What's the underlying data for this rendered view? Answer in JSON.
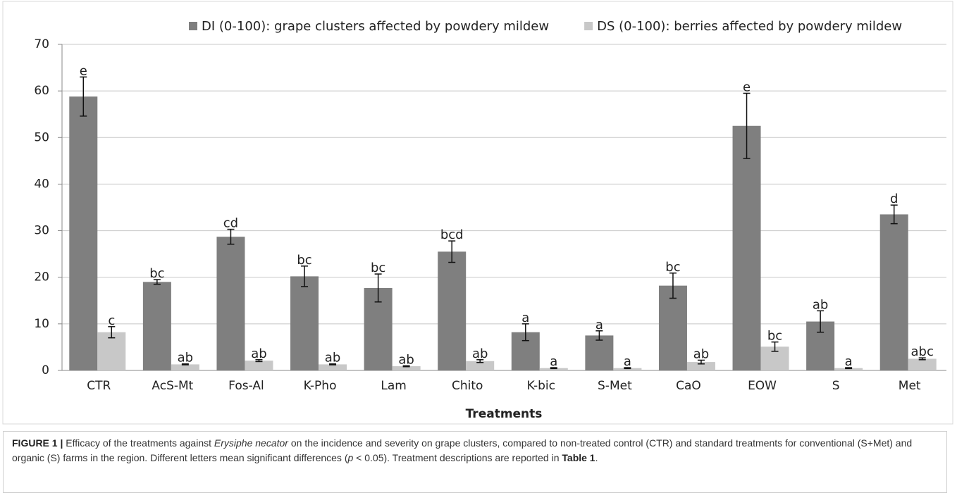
{
  "chart_data": {
    "type": "bar",
    "xlabel": "Treatments",
    "categories": [
      "CTR",
      "AcS-Mt",
      "Fos-Al",
      "K-Pho",
      "Lam",
      "Chito",
      "K-bic",
      "S-Met",
      "CaO",
      "EOW",
      "S",
      "Met"
    ],
    "series": [
      {
        "name": "DI (0-100): grape clusters affected by powdery mildew",
        "color": "#7f7f7f",
        "values": [
          58.8,
          19,
          28.7,
          20.2,
          17.7,
          25.5,
          8.2,
          7.5,
          18.2,
          52.5,
          10.5,
          33.5
        ],
        "errors": [
          4.2,
          0.5,
          1.6,
          2.2,
          3.0,
          2.3,
          1.8,
          1.0,
          2.7,
          7.0,
          2.3,
          2.0
        ],
        "labels": [
          "e",
          "bc",
          "cd",
          "bc",
          "bc",
          "bcd",
          "a",
          "a",
          "bc",
          "e",
          "ab",
          "d"
        ]
      },
      {
        "name": "DS (0-100): berries affected by powdery mildew",
        "color": "#c8c8c8",
        "values": [
          8.2,
          1.3,
          2.1,
          1.3,
          0.9,
          2.0,
          0.5,
          0.5,
          1.8,
          5.1,
          0.5,
          2.5
        ],
        "errors": [
          1.2,
          0.1,
          0.2,
          0.1,
          0.1,
          0.3,
          0.1,
          0.1,
          0.4,
          1.0,
          0.1,
          0.2
        ],
        "labels": [
          "c",
          "ab",
          "ab",
          "ab",
          "ab",
          "ab",
          "a",
          "a",
          "ab",
          "bc",
          "a",
          "abc"
        ]
      }
    ],
    "ylim": [
      0,
      70
    ],
    "yticks": [
      0,
      10,
      20,
      30,
      40,
      50,
      60,
      70
    ],
    "grid": true,
    "legend": "top"
  },
  "caption": [
    "FIGURE 1 |",
    " Efficacy of the treatments against ",
    "Erysiphe necator",
    " on the incidence and severity on grape clusters, compared to non-treated control (CTR) and standard treatments for conventional (S+Met) and organic (S) farms in the region. Different letters mean significant differences (",
    "p",
    " < 0.05). Treatment descriptions are reported in ",
    "Table 1",
    "."
  ]
}
